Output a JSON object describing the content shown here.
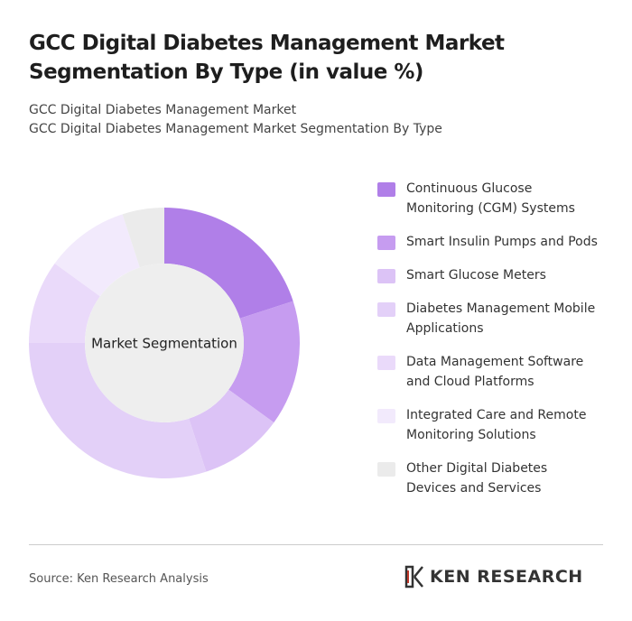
{
  "chart_data": {
    "type": "donut",
    "title": "GCC Digital Diabetes Management Market Segmentation By Type (in value %)",
    "subtitle_lines": [
      "GCC Digital Diabetes Management Market",
      "GCC Digital Diabetes Management Market Segmentation By Type"
    ],
    "center_label": "Market Segmentation",
    "categories": [
      "Continuous Glucose Monitoring (CGM) Systems",
      "Smart Insulin Pumps and Pods",
      "Smart Glucose Meters",
      "Diabetes Management Mobile Applications",
      "Data Management Software and Cloud Platforms",
      "Integrated Care and Remote Monitoring Solutions",
      "Other Digital Diabetes Devices and Services"
    ],
    "values": [
      20,
      15,
      10,
      30,
      10,
      10,
      5
    ],
    "colors": [
      "#b07fe8",
      "#c69cf0",
      "#dcc3f6",
      "#e3d0f8",
      "#eadafa",
      "#f2eafc",
      "#ebebeb"
    ],
    "source": "Source: Ken Research Analysis",
    "brand": "KEN RESEARCH"
  }
}
